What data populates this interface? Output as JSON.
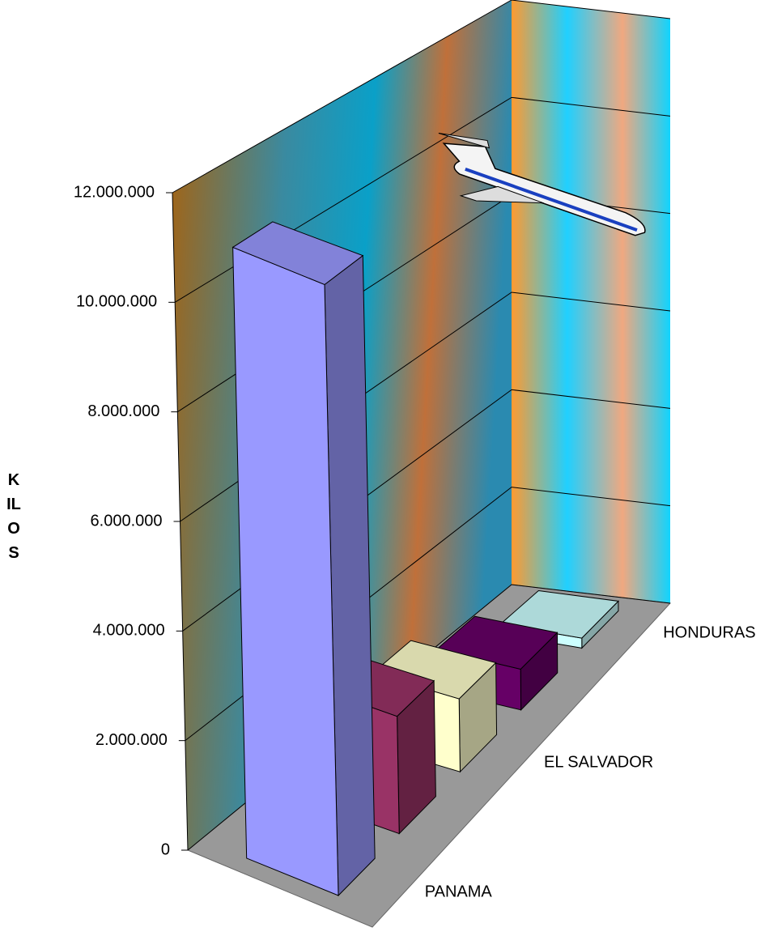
{
  "chart_data": {
    "type": "bar3d",
    "y_label": "KILOS",
    "categories": [
      "PANAMA",
      null,
      "EL SALVADOR",
      null,
      "HONDURAS"
    ],
    "values": [
      11200000,
      2200000,
      1400000,
      800000,
      200000
    ],
    "colors": [
      "#9999ff",
      "#993366",
      "#ffffcc",
      "#660066",
      "#ccffff"
    ],
    "ylim": [
      0,
      12000000
    ],
    "yticks": [
      0,
      {
        "value": 2000000,
        "label": "2.000.000"
      },
      {
        "value": 4000000,
        "label": "4.000.000"
      },
      {
        "value": 6000000,
        "label": "6.000.000"
      },
      {
        "value": 8000000,
        "label": "8.000.000"
      },
      {
        "value": 10000000,
        "label": "10.000.000"
      },
      {
        "value": 12000000,
        "label": "12.000.000"
      }
    ],
    "grid": true
  }
}
